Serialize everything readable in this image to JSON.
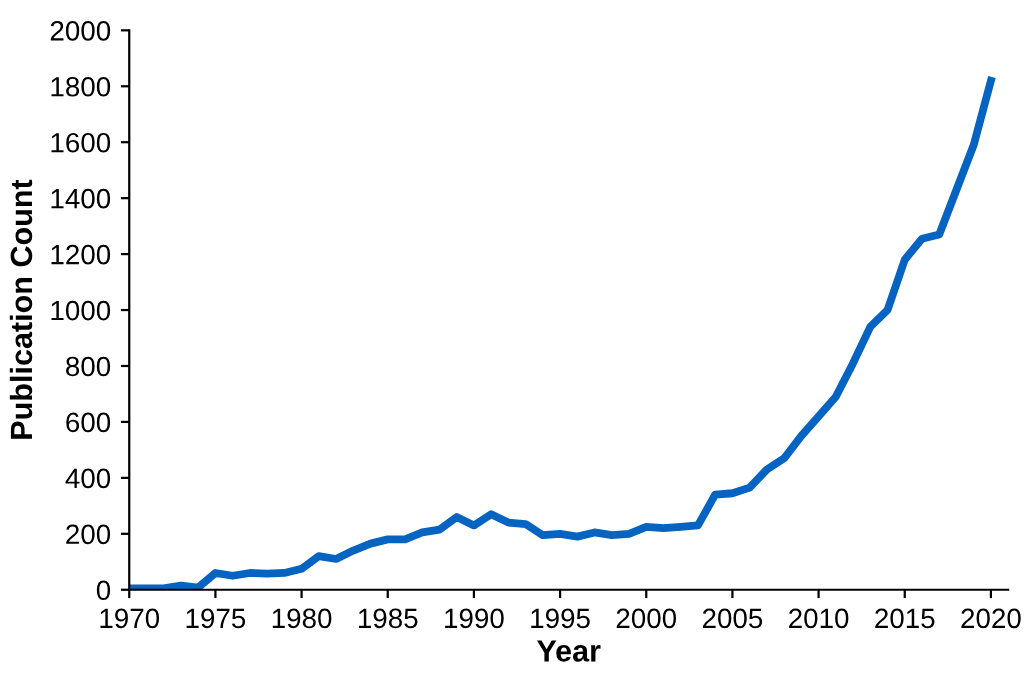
{
  "chart_data": {
    "type": "line",
    "xlabel": "Year",
    "ylabel": "Publication Count",
    "x": [
      1970,
      1971,
      1972,
      1973,
      1974,
      1975,
      1976,
      1977,
      1978,
      1979,
      1980,
      1981,
      1982,
      1983,
      1984,
      1985,
      1986,
      1987,
      1988,
      1989,
      1990,
      1991,
      1992,
      1993,
      1994,
      1995,
      1996,
      1997,
      1998,
      1999,
      2000,
      2001,
      2002,
      2003,
      2004,
      2005,
      2006,
      2007,
      2008,
      2009,
      2010,
      2011,
      2012,
      2013,
      2014,
      2015,
      2016,
      2017,
      2018,
      2019,
      2020
    ],
    "series": [
      {
        "color": "#0563c1",
        "values": [
          5,
          5,
          5,
          15,
          8,
          60,
          50,
          60,
          58,
          60,
          75,
          120,
          110,
          140,
          165,
          180,
          180,
          205,
          215,
          260,
          230,
          270,
          240,
          235,
          195,
          200,
          190,
          205,
          195,
          200,
          225,
          220,
          225,
          230,
          340,
          345,
          365,
          430,
          470,
          550,
          620,
          690,
          810,
          940,
          1000,
          1180,
          1255,
          1270,
          1430,
          1590,
          1820
        ]
      }
    ],
    "xlim": [
      1970,
      2021
    ],
    "xticks": [
      1970,
      1975,
      1980,
      1985,
      1990,
      1995,
      2000,
      2005,
      2010,
      2015,
      2020
    ],
    "ylim": [
      0,
      2000
    ],
    "yticks": [
      0,
      200,
      400,
      600,
      800,
      1000,
      1200,
      1400,
      1600,
      1800,
      2000
    ],
    "grid": false,
    "legend": false,
    "marker": "none",
    "line_style": "solid"
  }
}
